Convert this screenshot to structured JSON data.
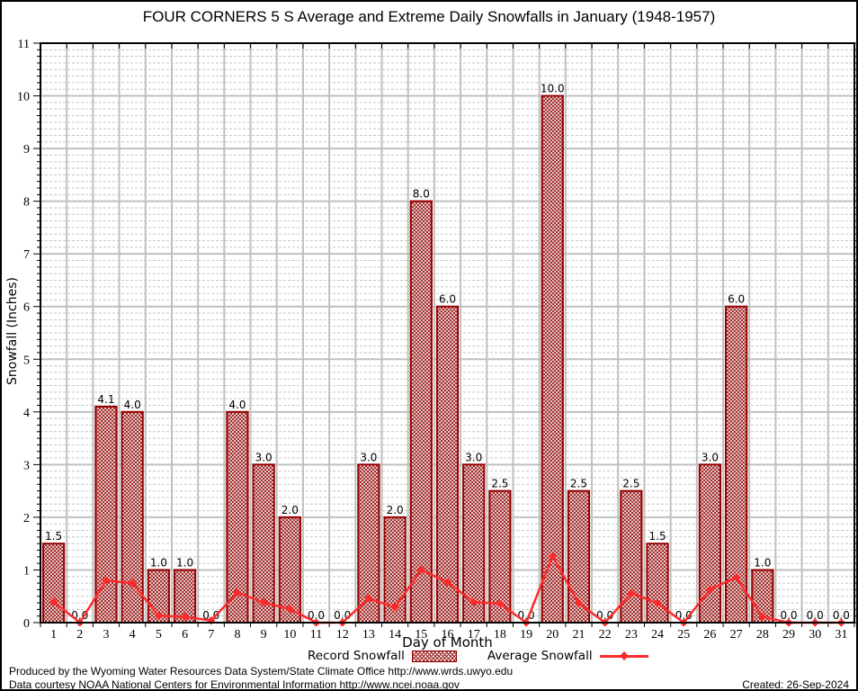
{
  "title": "FOUR CORNERS 5 S Average and Extreme Daily Snowfalls in January (1948-1957)",
  "footer": {
    "line1": "Produced by the Wyoming Water Resources Data System/State Climate Office http://www.wrds.uwyo.edu",
    "line2": "Data courtesy NOAA National Centers for Environmental Information http://www.ncei.noaa.gov",
    "created": "Created: 26-Sep-2024"
  },
  "chart_data": {
    "type": "bar",
    "title": "FOUR CORNERS 5 S Average and Extreme Daily Snowfalls in January (1948-1957)",
    "xlabel": "Day of Month",
    "ylabel": "Snowfall (Inches)",
    "ylim": [
      0,
      11
    ],
    "yticks": [
      0,
      1,
      2,
      3,
      4,
      5,
      6,
      7,
      8,
      9,
      10,
      11
    ],
    "x": [
      1,
      2,
      3,
      4,
      5,
      6,
      7,
      8,
      9,
      10,
      11,
      12,
      13,
      14,
      15,
      16,
      17,
      18,
      19,
      20,
      21,
      22,
      23,
      24,
      25,
      26,
      27,
      28,
      29,
      30,
      31
    ],
    "grid": {
      "major": true,
      "minor_subdivisions_per_unit": 8
    },
    "legend_position": "bottom",
    "series": [
      {
        "name": "Record Snowfall",
        "type": "bar",
        "values": [
          1.5,
          0.0,
          4.1,
          4.0,
          1.0,
          1.0,
          0.0,
          4.0,
          3.0,
          2.0,
          0.0,
          0.0,
          3.0,
          2.0,
          8.0,
          6.0,
          3.0,
          2.5,
          0.0,
          10.0,
          2.5,
          0.0,
          2.5,
          1.5,
          0.0,
          3.0,
          6.0,
          1.0,
          0.0,
          0.0,
          0.0
        ]
      },
      {
        "name": "Average Snowfall",
        "type": "line",
        "values": [
          0.4,
          0.0,
          0.8,
          0.75,
          0.13,
          0.11,
          0.04,
          0.57,
          0.38,
          0.26,
          0.0,
          0.0,
          0.46,
          0.29,
          1.0,
          0.77,
          0.39,
          0.36,
          0.0,
          1.26,
          0.37,
          0.0,
          0.56,
          0.37,
          0.0,
          0.63,
          0.86,
          0.11,
          0.0,
          0.0,
          0.0
        ]
      }
    ],
    "colors": {
      "bar_border": "#960000",
      "bar_hatch": "#9b1f1f",
      "line": "#fd2b2b",
      "grid_major": "#c0c0c0",
      "grid_minor": "#c6c6c6",
      "axis": "#000000",
      "text": "#000000"
    }
  }
}
